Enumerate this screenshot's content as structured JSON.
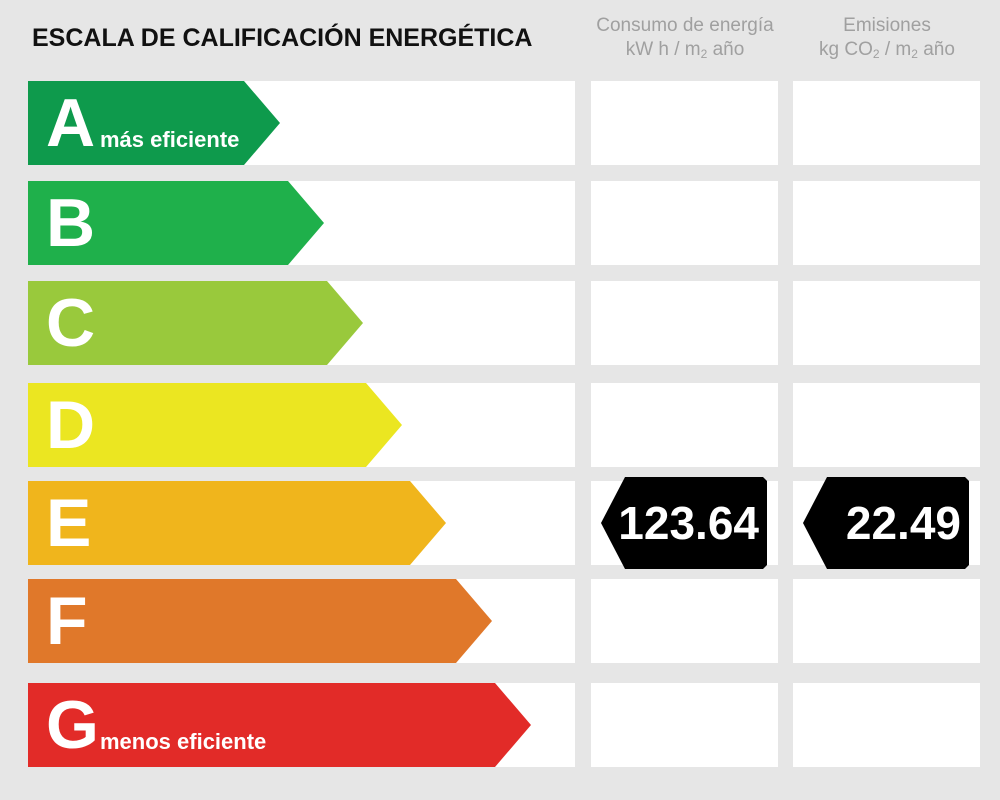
{
  "header": {
    "title": "ESCALA DE CALIFICACIÓN ENERGÉTICA",
    "consumption": {
      "line1": "Consumo de energía",
      "pre": "kW h / m",
      "sub": "2",
      "post": " año"
    },
    "emissions": {
      "line1": "Emisiones",
      "pre": "kg CO",
      "sub": "2",
      "mid": " / m",
      "sub2": "2",
      "post": " año"
    }
  },
  "scale": [
    {
      "letter": "A",
      "label": "más eficiente",
      "color": "#0e9a4c"
    },
    {
      "letter": "B",
      "label": "",
      "color": "#1fb04b"
    },
    {
      "letter": "C",
      "label": "",
      "color": "#99c93c"
    },
    {
      "letter": "D",
      "label": "",
      "color": "#ebe621"
    },
    {
      "letter": "E",
      "label": "",
      "color": "#f0b51c"
    },
    {
      "letter": "F",
      "label": "",
      "color": "#e0782a"
    },
    {
      "letter": "G",
      "label": "menos eficiente",
      "color": "#e22b28"
    }
  ],
  "rating": {
    "rating_letter": "E",
    "consumption_value": "123.64",
    "emissions_value": "22.49",
    "tag_color": "#000000"
  }
}
